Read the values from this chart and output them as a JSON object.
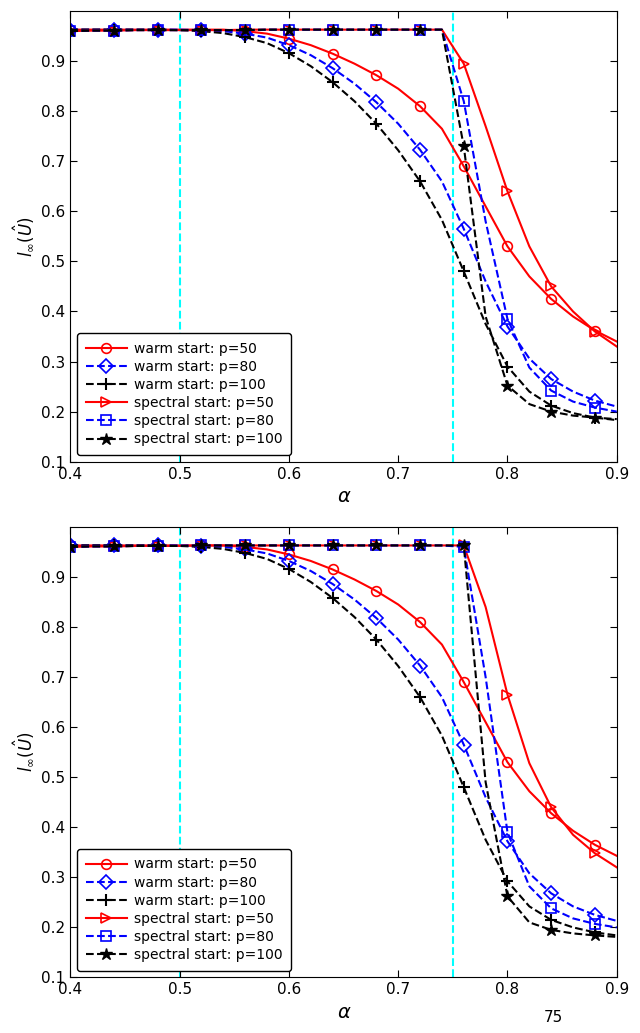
{
  "xlim": [
    0.4,
    0.9
  ],
  "ylim": [
    0.1,
    1.0
  ],
  "vlines": [
    0.5,
    0.75
  ],
  "xlabel": "α",
  "yticks": [
    0.1,
    0.2,
    0.3,
    0.4,
    0.5,
    0.6,
    0.7,
    0.8,
    0.9
  ],
  "xticks": [
    0.4,
    0.5,
    0.6,
    0.7,
    0.8,
    0.9
  ],
  "legend_entries": [
    "warm start: p=50",
    "warm start: p=80",
    "warm start: p=100",
    "spectral start: p=50",
    "spectral start: p=80",
    "spectral start: p=100"
  ],
  "alpha_values": [
    0.4,
    0.42,
    0.44,
    0.46,
    0.48,
    0.5,
    0.52,
    0.54,
    0.56,
    0.58,
    0.6,
    0.62,
    0.64,
    0.66,
    0.68,
    0.7,
    0.72,
    0.74,
    0.76,
    0.78,
    0.8,
    0.82,
    0.84,
    0.86,
    0.88,
    0.9
  ],
  "subplot1": {
    "warm_p50": [
      0.963,
      0.963,
      0.963,
      0.963,
      0.963,
      0.963,
      0.963,
      0.963,
      0.96,
      0.955,
      0.945,
      0.932,
      0.915,
      0.895,
      0.872,
      0.845,
      0.81,
      0.765,
      0.69,
      0.61,
      0.53,
      0.47,
      0.425,
      0.39,
      0.362,
      0.34
    ],
    "warm_p80": [
      0.963,
      0.963,
      0.963,
      0.963,
      0.963,
      0.963,
      0.962,
      0.96,
      0.955,
      0.947,
      0.932,
      0.912,
      0.886,
      0.855,
      0.818,
      0.775,
      0.723,
      0.66,
      0.565,
      0.46,
      0.37,
      0.306,
      0.265,
      0.24,
      0.222,
      0.21
    ],
    "warm_p100": [
      0.963,
      0.963,
      0.963,
      0.963,
      0.963,
      0.962,
      0.96,
      0.956,
      0.948,
      0.936,
      0.916,
      0.89,
      0.858,
      0.82,
      0.775,
      0.722,
      0.66,
      0.583,
      0.48,
      0.375,
      0.29,
      0.24,
      0.212,
      0.197,
      0.188,
      0.183
    ],
    "spectral_p50": [
      0.96,
      0.961,
      0.961,
      0.962,
      0.962,
      0.962,
      0.962,
      0.962,
      0.963,
      0.963,
      0.963,
      0.963,
      0.963,
      0.963,
      0.963,
      0.963,
      0.963,
      0.963,
      0.895,
      0.77,
      0.64,
      0.53,
      0.45,
      0.4,
      0.36,
      0.33
    ],
    "spectral_p80": [
      0.96,
      0.961,
      0.961,
      0.962,
      0.962,
      0.962,
      0.962,
      0.962,
      0.962,
      0.963,
      0.963,
      0.963,
      0.963,
      0.963,
      0.963,
      0.963,
      0.963,
      0.963,
      0.82,
      0.58,
      0.385,
      0.288,
      0.242,
      0.22,
      0.208,
      0.2
    ],
    "spectral_p100": [
      0.96,
      0.961,
      0.961,
      0.962,
      0.962,
      0.962,
      0.962,
      0.962,
      0.962,
      0.963,
      0.963,
      0.963,
      0.963,
      0.963,
      0.963,
      0.963,
      0.963,
      0.963,
      0.73,
      0.39,
      0.252,
      0.215,
      0.2,
      0.192,
      0.188,
      0.185
    ]
  },
  "subplot2": {
    "warm_p50": [
      0.963,
      0.963,
      0.963,
      0.963,
      0.963,
      0.963,
      0.963,
      0.963,
      0.96,
      0.955,
      0.945,
      0.932,
      0.915,
      0.895,
      0.872,
      0.845,
      0.81,
      0.765,
      0.69,
      0.61,
      0.53,
      0.472,
      0.428,
      0.393,
      0.365,
      0.343
    ],
    "warm_p80": [
      0.963,
      0.963,
      0.963,
      0.963,
      0.963,
      0.963,
      0.962,
      0.96,
      0.955,
      0.947,
      0.932,
      0.912,
      0.886,
      0.855,
      0.818,
      0.775,
      0.723,
      0.66,
      0.565,
      0.46,
      0.372,
      0.308,
      0.268,
      0.242,
      0.225,
      0.213
    ],
    "warm_p100": [
      0.963,
      0.963,
      0.963,
      0.963,
      0.963,
      0.962,
      0.96,
      0.956,
      0.948,
      0.936,
      0.916,
      0.89,
      0.858,
      0.82,
      0.775,
      0.722,
      0.66,
      0.583,
      0.48,
      0.375,
      0.292,
      0.242,
      0.215,
      0.2,
      0.19,
      0.184
    ],
    "spectral_p50": [
      0.96,
      0.961,
      0.961,
      0.962,
      0.962,
      0.962,
      0.963,
      0.963,
      0.963,
      0.963,
      0.963,
      0.963,
      0.963,
      0.963,
      0.963,
      0.963,
      0.963,
      0.963,
      0.963,
      0.84,
      0.665,
      0.528,
      0.44,
      0.385,
      0.348,
      0.32
    ],
    "spectral_p80": [
      0.96,
      0.961,
      0.961,
      0.962,
      0.962,
      0.962,
      0.963,
      0.963,
      0.963,
      0.963,
      0.963,
      0.963,
      0.963,
      0.963,
      0.963,
      0.963,
      0.963,
      0.963,
      0.96,
      0.7,
      0.39,
      0.282,
      0.238,
      0.218,
      0.207,
      0.2
    ],
    "spectral_p100": [
      0.96,
      0.961,
      0.961,
      0.962,
      0.962,
      0.962,
      0.963,
      0.963,
      0.963,
      0.963,
      0.963,
      0.963,
      0.963,
      0.963,
      0.963,
      0.963,
      0.963,
      0.963,
      0.963,
      0.49,
      0.262,
      0.21,
      0.195,
      0.188,
      0.184,
      0.181
    ]
  },
  "bottom_note": "75"
}
